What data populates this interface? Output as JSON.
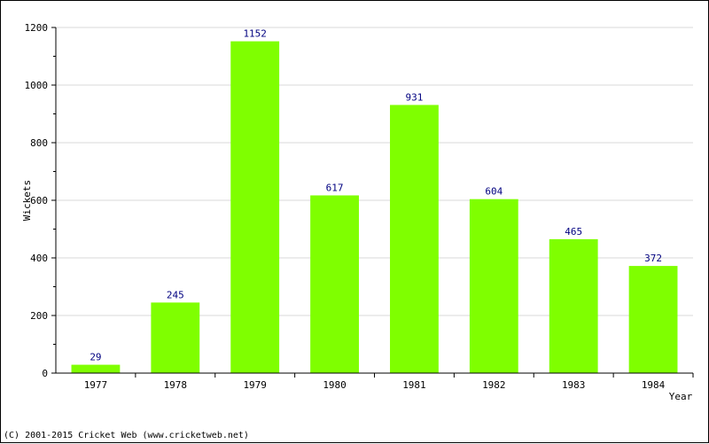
{
  "chart_data": {
    "type": "bar",
    "title": "",
    "xlabel": "Year",
    "ylabel": "Wickets",
    "categories": [
      "1977",
      "1978",
      "1979",
      "1980",
      "1981",
      "1982",
      "1983",
      "1984"
    ],
    "values": [
      29,
      245,
      1152,
      617,
      931,
      604,
      465,
      372
    ],
    "ylim": [
      0,
      1200
    ],
    "yticks": [
      0,
      200,
      400,
      600,
      800,
      1000,
      1200
    ],
    "grid": true,
    "legend": "none",
    "bar_color": "#7fff00",
    "label_color": "#000080",
    "grid_color": "#d9d9d9"
  },
  "footer": {
    "copyright": "(C) 2001-2015 Cricket Web (www.cricketweb.net)"
  }
}
